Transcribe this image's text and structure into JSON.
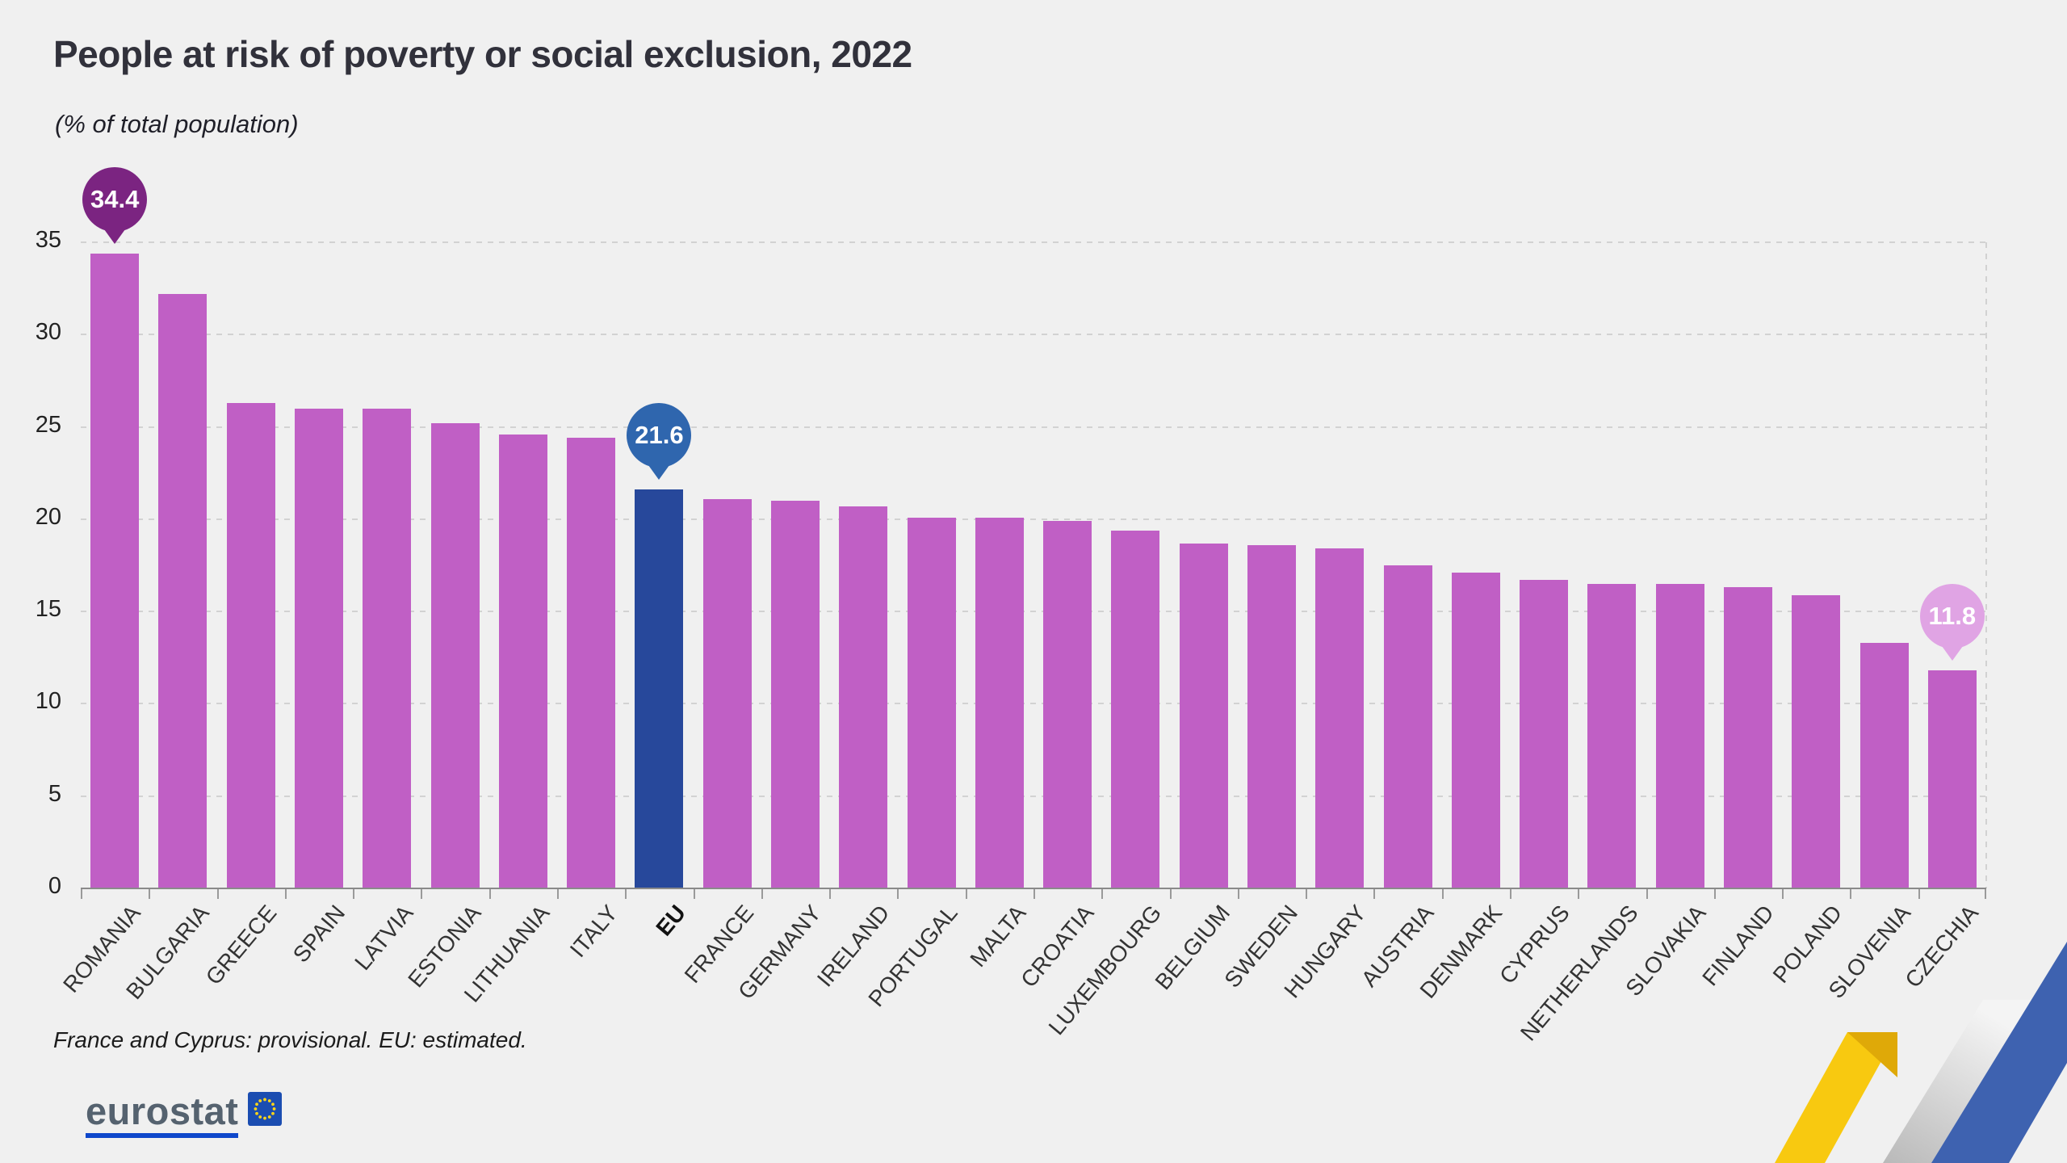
{
  "page": {
    "title": "People at risk of poverty or social exclusion, 2022",
    "subtitle": "(% of total population)",
    "footnote": "France and Cyprus: provisional. EU: estimated.",
    "logo_text": "eurostat"
  },
  "colors": {
    "background": "#F0F0F0",
    "bar": "#C05FC5",
    "eu_bar": "#27489B",
    "callout_high": "#7B2481",
    "callout_eu": "#2F66AE",
    "callout_low": "#E0A4E4",
    "gridline": "#D2D2D2",
    "baseline": "#8A8A8A",
    "axis_text": "#333333",
    "title_text": "#31313B",
    "logo_text_color": "#55626F",
    "logo_blue": "#0E47CB",
    "flag_blue": "#1B4DB1",
    "star_yellow": "#FFD617",
    "ribbon_yellow": "#F8C910",
    "ribbon_yellow_fold": "#DFA908",
    "ribbon_blue": "#3E62B0"
  },
  "chart_data": {
    "type": "bar",
    "title": "People at risk of poverty or social exclusion, 2022",
    "subtitle": "(% of total population)",
    "xlabel": "",
    "ylabel": "% of total population",
    "ylim": [
      0,
      35
    ],
    "yticks": [
      0,
      5,
      10,
      15,
      20,
      25,
      30,
      35
    ],
    "grid": "horizontal-dashed",
    "legend": "none",
    "categories": [
      "ROMANIA",
      "BULGARIA",
      "GREECE",
      "SPAIN",
      "LATVIA",
      "ESTONIA",
      "LITHUANIA",
      "ITALY",
      "EU",
      "FRANCE",
      "GERMANY",
      "IRELAND",
      "PORTUGAL",
      "MALTA",
      "CROATIA",
      "LUXEMBOURG",
      "BELGIUM",
      "SWEDEN",
      "HUNGARY",
      "AUSTRIA",
      "DENMARK",
      "CYPRUS",
      "NETHERLANDS",
      "SLOVAKIA",
      "FINLAND",
      "POLAND",
      "SLOVENIA",
      "CZECHIA"
    ],
    "values": [
      34.4,
      32.2,
      26.3,
      26.0,
      26.0,
      25.2,
      24.6,
      24.4,
      21.6,
      21.1,
      21.0,
      20.7,
      20.1,
      20.1,
      19.9,
      19.4,
      18.7,
      18.6,
      18.4,
      17.5,
      17.1,
      16.7,
      16.5,
      16.5,
      16.3,
      15.9,
      13.3,
      11.8
    ],
    "highlight_category": "EU",
    "callouts": [
      {
        "category": "ROMANIA",
        "label": "34.4",
        "color_key": "callout_high"
      },
      {
        "category": "EU",
        "label": "21.6",
        "color_key": "callout_eu"
      },
      {
        "category": "CZECHIA",
        "label": "11.8",
        "color_key": "callout_low"
      }
    ]
  }
}
